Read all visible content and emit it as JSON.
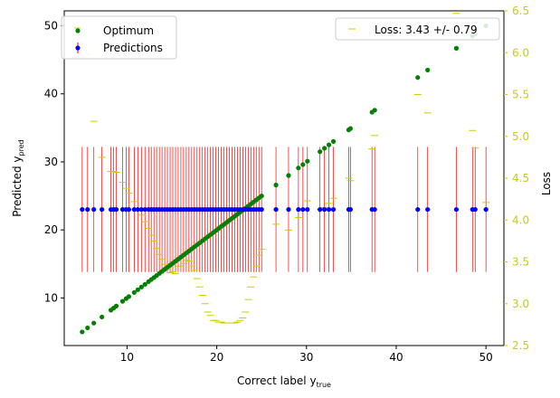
{
  "chart_data": {
    "type": "scatter",
    "xlabel_main": "Correct label y",
    "xlabel_sub": "true",
    "ylabel_main": "Predicted y",
    "ylabel_sub": "pred",
    "y2label": "Loss",
    "xlim": [
      3,
      52
    ],
    "ylim": [
      3,
      52.2
    ],
    "y2lim": [
      2.5,
      6.5
    ],
    "xticks": [
      10,
      20,
      30,
      40,
      50
    ],
    "yticks": [
      10,
      20,
      30,
      40,
      50
    ],
    "y2ticks": [
      2.5,
      3.0,
      3.5,
      4.0,
      4.5,
      5.0,
      5.5,
      6.0,
      6.5
    ],
    "y2tick_labels": [
      "2.5",
      "3.0",
      "3.5",
      "4.0",
      "4.5",
      "5.0",
      "5.5",
      "6.0",
      "6.5"
    ],
    "legend_left": {
      "placement": "upper-left",
      "entries": [
        "Optimum",
        "Predictions"
      ]
    },
    "legend_right": {
      "placement": "upper-right",
      "entries": [
        "Loss: 3.43 +/- 0.79"
      ]
    },
    "prediction_value": 23.0,
    "prediction_error": 9.2,
    "x": [
      5.0,
      5.6,
      6.3,
      7.2,
      8.2,
      8.5,
      8.8,
      9.5,
      9.9,
      10.2,
      10.8,
      11.2,
      11.6,
      12.0,
      12.4,
      12.7,
      13.0,
      13.3,
      13.6,
      13.9,
      14.2,
      14.5,
      14.8,
      15.1,
      15.4,
      15.7,
      16.0,
      16.3,
      16.6,
      16.9,
      17.2,
      17.5,
      17.8,
      18.1,
      18.4,
      18.7,
      19.0,
      19.3,
      19.6,
      19.9,
      20.2,
      20.5,
      20.8,
      21.1,
      21.4,
      21.7,
      22.0,
      22.3,
      22.6,
      22.9,
      23.2,
      23.5,
      23.8,
      24.1,
      24.4,
      24.7,
      25.0,
      26.6,
      28.0,
      29.1,
      29.6,
      30.1,
      31.5,
      32.0,
      32.5,
      33.0,
      34.7,
      34.9,
      37.3,
      37.6,
      42.4,
      43.5,
      46.7,
      48.5,
      48.8,
      50.0
    ],
    "loss": [
      6.22,
      5.98,
      5.18,
      4.75,
      4.58,
      4.58,
      4.57,
      4.45,
      4.38,
      4.32,
      4.22,
      4.13,
      4.06,
      3.98,
      3.9,
      3.82,
      3.75,
      3.66,
      3.59,
      3.53,
      3.47,
      3.43,
      3.37,
      3.38,
      3.36,
      3.45,
      3.45,
      3.48,
      3.52,
      3.51,
      3.45,
      3.4,
      3.3,
      3.2,
      3.1,
      3.0,
      2.9,
      2.86,
      2.8,
      2.8,
      2.78,
      2.78,
      2.77,
      2.77,
      2.77,
      2.77,
      2.77,
      2.78,
      2.8,
      2.83,
      2.9,
      3.05,
      3.2,
      3.32,
      3.45,
      3.58,
      3.65,
      3.95,
      3.88,
      4.03,
      4.12,
      4.23,
      4.13,
      4.15,
      4.2,
      4.26,
      4.5,
      4.47,
      4.85,
      5.01,
      5.5,
      5.28,
      6.47,
      5.07,
      4.86,
      4.21
    ]
  }
}
